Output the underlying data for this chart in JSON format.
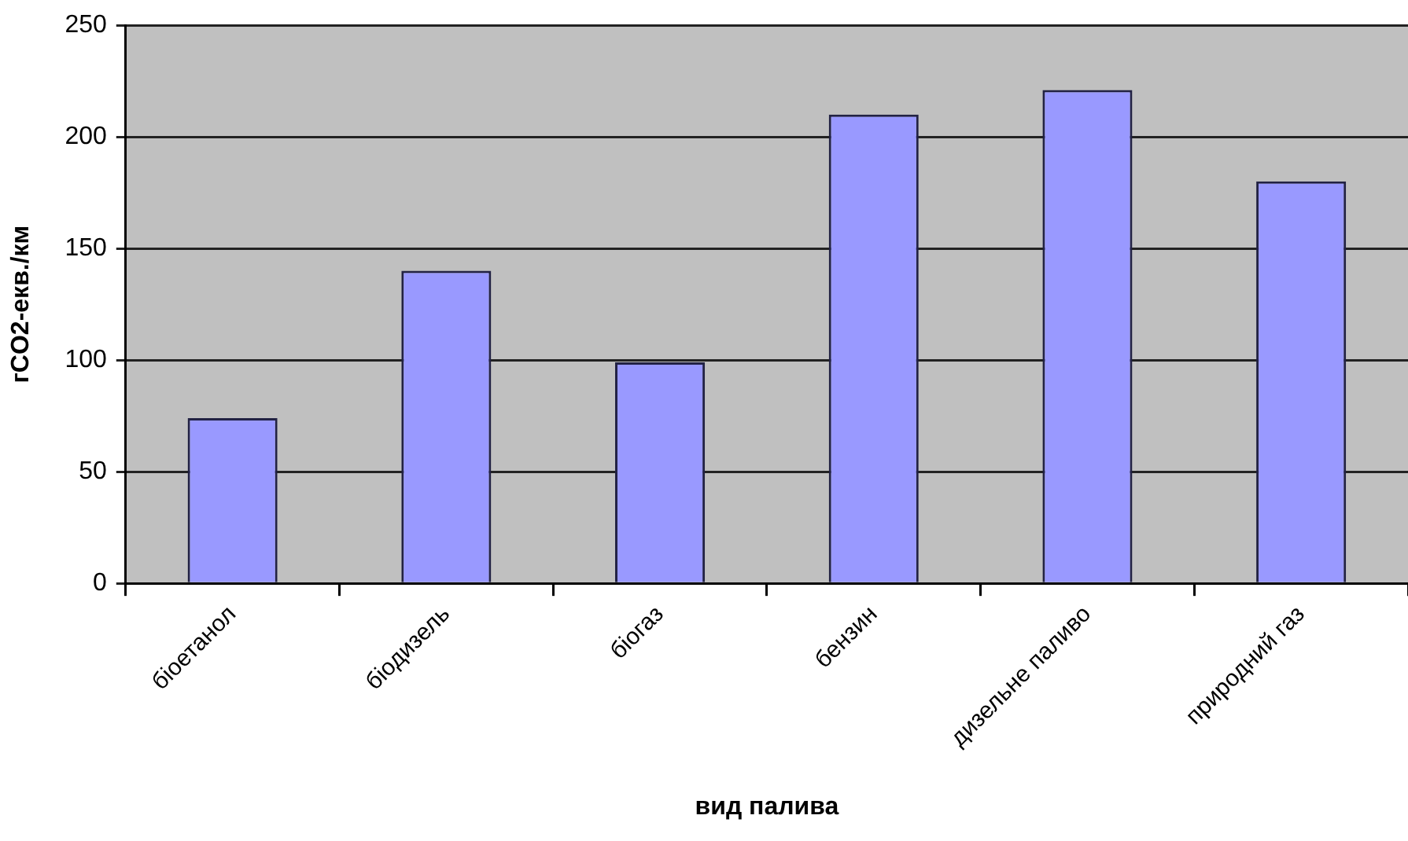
{
  "chart_data": {
    "type": "bar",
    "xlabel": "вид палива",
    "ylabel": "гCO2-екв./км",
    "categories": [
      "біоетанол",
      "біодизель",
      "біогаз",
      "бензин",
      "дизельне паливо",
      "природний газ"
    ],
    "values": [
      74,
      140,
      99,
      210,
      221,
      180
    ],
    "color": "#9999ff",
    "ylim": [
      0,
      250
    ],
    "yticks": [
      0,
      50,
      100,
      150,
      200,
      250
    ],
    "grid": "y",
    "legend": false
  }
}
